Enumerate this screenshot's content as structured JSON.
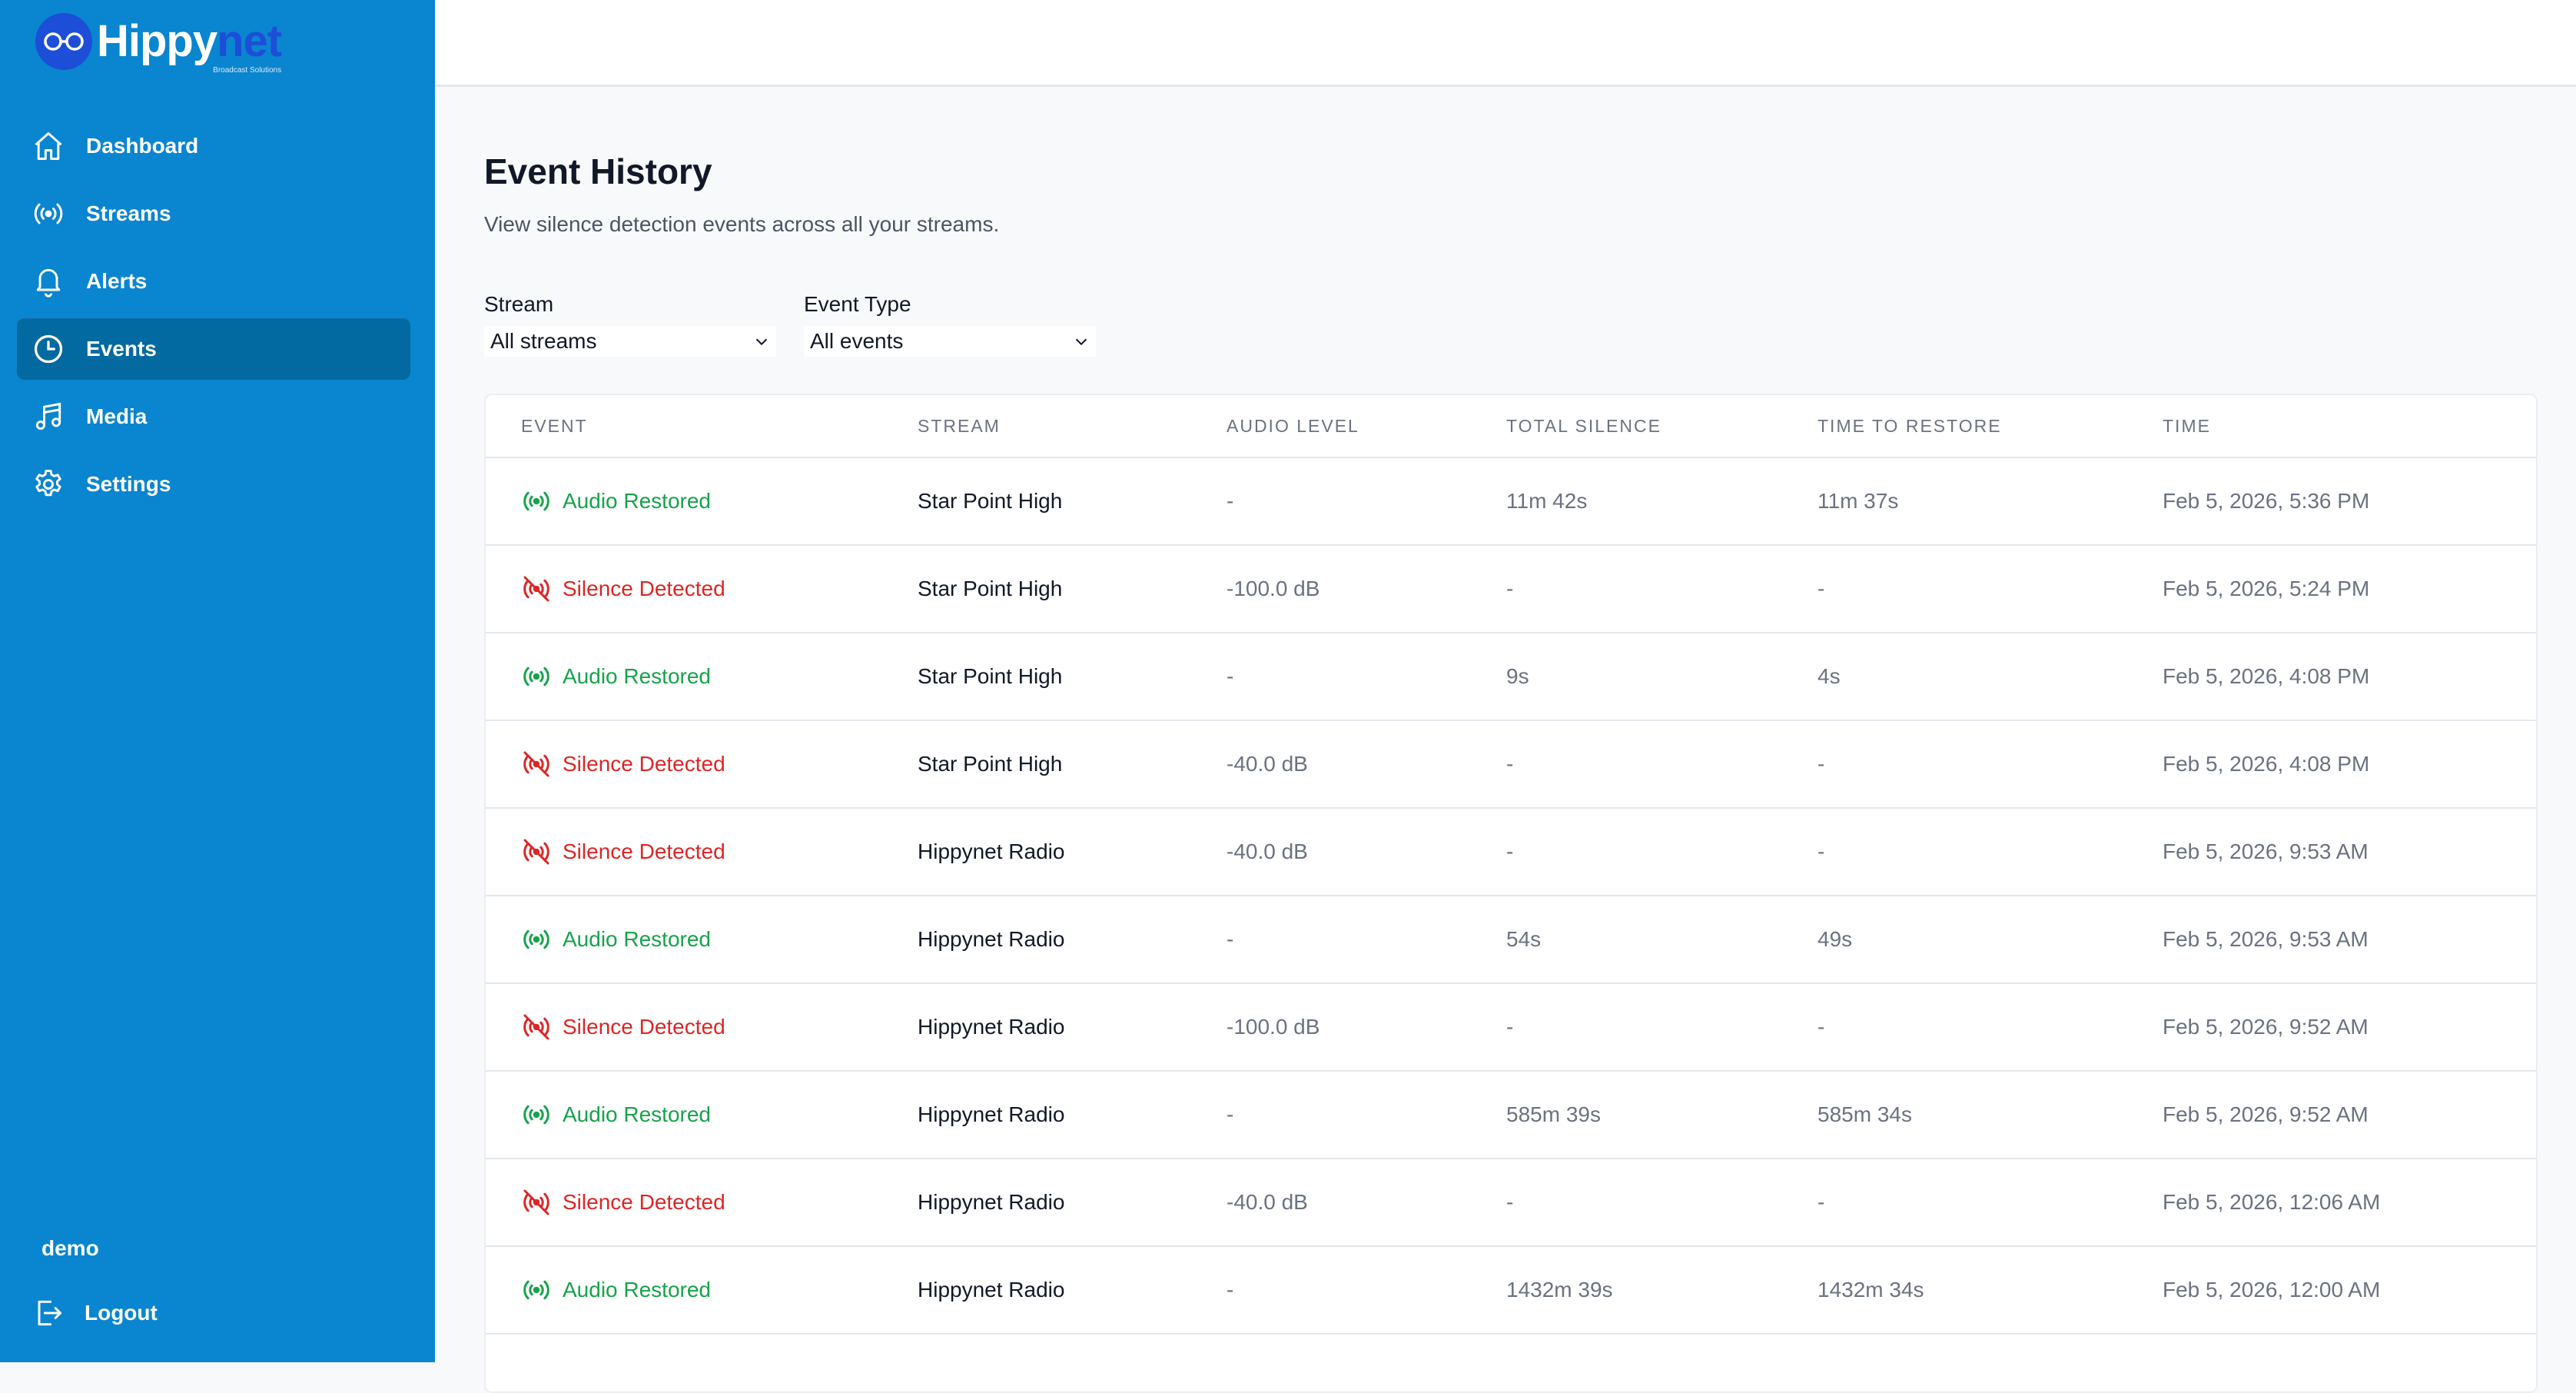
{
  "brand": {
    "name_part1": "Hippy",
    "name_part2": "net",
    "tagline": "Broadcast Solutions"
  },
  "sidebar": {
    "items": [
      {
        "label": "Dashboard",
        "icon": "home-icon"
      },
      {
        "label": "Streams",
        "icon": "broadcast-icon"
      },
      {
        "label": "Alerts",
        "icon": "bell-icon"
      },
      {
        "label": "Events",
        "icon": "clock-icon",
        "active": true
      },
      {
        "label": "Media",
        "icon": "music-note-icon"
      },
      {
        "label": "Settings",
        "icon": "gear-icon"
      }
    ],
    "user": "demo",
    "logout_label": "Logout"
  },
  "page": {
    "title": "Event History",
    "subtitle": "View silence detection events across all your streams."
  },
  "filters": {
    "stream": {
      "label": "Stream",
      "value": "All streams"
    },
    "event_type": {
      "label": "Event Type",
      "value": "All events"
    }
  },
  "table": {
    "headers": [
      "EVENT",
      "STREAM",
      "AUDIO LEVEL",
      "TOTAL SILENCE",
      "TIME TO RESTORE",
      "TIME"
    ],
    "rows": [
      {
        "event": "Audio Restored",
        "type": "restored",
        "stream": "Star Point High",
        "audio_level": "-",
        "total_silence": "11m 42s",
        "time_to_restore": "11m 37s",
        "time": "Feb 5, 2026, 5:36 PM"
      },
      {
        "event": "Silence Detected",
        "type": "silence",
        "stream": "Star Point High",
        "audio_level": "-100.0 dB",
        "total_silence": "-",
        "time_to_restore": "-",
        "time": "Feb 5, 2026, 5:24 PM"
      },
      {
        "event": "Audio Restored",
        "type": "restored",
        "stream": "Star Point High",
        "audio_level": "-",
        "total_silence": "9s",
        "time_to_restore": "4s",
        "time": "Feb 5, 2026, 4:08 PM"
      },
      {
        "event": "Silence Detected",
        "type": "silence",
        "stream": "Star Point High",
        "audio_level": "-40.0 dB",
        "total_silence": "-",
        "time_to_restore": "-",
        "time": "Feb 5, 2026, 4:08 PM"
      },
      {
        "event": "Silence Detected",
        "type": "silence",
        "stream": "Hippynet Radio",
        "audio_level": "-40.0 dB",
        "total_silence": "-",
        "time_to_restore": "-",
        "time": "Feb 5, 2026, 9:53 AM"
      },
      {
        "event": "Audio Restored",
        "type": "restored",
        "stream": "Hippynet Radio",
        "audio_level": "-",
        "total_silence": "54s",
        "time_to_restore": "49s",
        "time": "Feb 5, 2026, 9:53 AM"
      },
      {
        "event": "Silence Detected",
        "type": "silence",
        "stream": "Hippynet Radio",
        "audio_level": "-100.0 dB",
        "total_silence": "-",
        "time_to_restore": "-",
        "time": "Feb 5, 2026, 9:52 AM"
      },
      {
        "event": "Audio Restored",
        "type": "restored",
        "stream": "Hippynet Radio",
        "audio_level": "-",
        "total_silence": "585m 39s",
        "time_to_restore": "585m 34s",
        "time": "Feb 5, 2026, 9:52 AM"
      },
      {
        "event": "Silence Detected",
        "type": "silence",
        "stream": "Hippynet Radio",
        "audio_level": "-40.0 dB",
        "total_silence": "-",
        "time_to_restore": "-",
        "time": "Feb 5, 2026, 12:06 AM"
      },
      {
        "event": "Audio Restored",
        "type": "restored",
        "stream": "Hippynet Radio",
        "audio_level": "-",
        "total_silence": "1432m 39s",
        "time_to_restore": "1432m 34s",
        "time": "Feb 5, 2026, 12:00 AM"
      }
    ]
  },
  "colors": {
    "sidebar": "#0a85cf",
    "active_nav": "#0369a1",
    "restored": "#16a34a",
    "silence": "#dc2626"
  }
}
